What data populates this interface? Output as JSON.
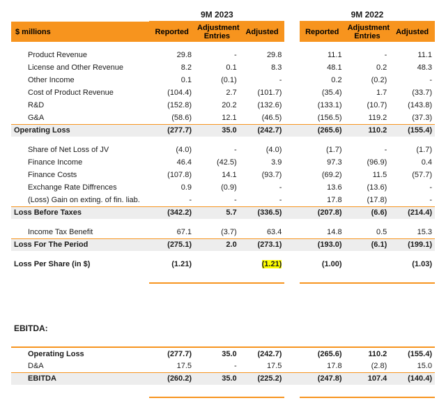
{
  "header": {
    "units": "$ millions",
    "periods": [
      "9M 2023",
      "9M 2022"
    ],
    "columns": [
      "Reported",
      "Adjustment Entries",
      "Adjusted"
    ]
  },
  "rows": {
    "prodRev": {
      "label": "Product Revenue",
      "a": [
        "29.8",
        "-",
        "29.8"
      ],
      "b": [
        "11.1",
        "-",
        "11.1"
      ]
    },
    "licRev": {
      "label": "License and Other Revenue",
      "a": [
        "8.2",
        "0.1",
        "8.3"
      ],
      "b": [
        "48.1",
        "0.2",
        "48.3"
      ]
    },
    "otherInc": {
      "label": "Other Income",
      "a": [
        "0.1",
        "(0.1)",
        "-"
      ],
      "b": [
        "0.2",
        "(0.2)",
        "-"
      ]
    },
    "cogs": {
      "label": "Cost of Product Revenue",
      "a": [
        "(104.4)",
        "2.7",
        "(101.7)"
      ],
      "b": [
        "(35.4)",
        "1.7",
        "(33.7)"
      ]
    },
    "rnd": {
      "label": "R&D",
      "a": [
        "(152.8)",
        "20.2",
        "(132.6)"
      ],
      "b": [
        "(133.1)",
        "(10.7)",
        "(143.8)"
      ]
    },
    "gna": {
      "label": "G&A",
      "a": [
        "(58.6)",
        "12.1",
        "(46.5)"
      ],
      "b": [
        "(156.5)",
        "119.2",
        "(37.3)"
      ]
    },
    "opLoss": {
      "label": "Operating Loss",
      "a": [
        "(277.7)",
        "35.0",
        "(242.7)"
      ],
      "b": [
        "(265.6)",
        "110.2",
        "(155.4)"
      ]
    },
    "jv": {
      "label": "Share of Net Loss of JV",
      "a": [
        "(4.0)",
        "-",
        "(4.0)"
      ],
      "b": [
        "(1.7)",
        "-",
        "(1.7)"
      ]
    },
    "finInc": {
      "label": "Finance Income",
      "a": [
        "46.4",
        "(42.5)",
        "3.9"
      ],
      "b": [
        "97.3",
        "(96.9)",
        "0.4"
      ]
    },
    "finCost": {
      "label": "Finance Costs",
      "a": [
        "(107.8)",
        "14.1",
        "(93.7)"
      ],
      "b": [
        "(69.2)",
        "11.5",
        "(57.7)"
      ]
    },
    "fx": {
      "label": "Exchange Rate Diffrences",
      "a": [
        "0.9",
        "(0.9)",
        "-"
      ],
      "b": [
        "13.6",
        "(13.6)",
        "-"
      ]
    },
    "exting": {
      "label": "(Loss) Gain on exting. of fin. liab.",
      "a": [
        "-",
        "-",
        "-"
      ],
      "b": [
        "17.8",
        "(17.8)",
        "-"
      ]
    },
    "lbt": {
      "label": "Loss Before Taxes",
      "a": [
        "(342.2)",
        "5.7",
        "(336.5)"
      ],
      "b": [
        "(207.8)",
        "(6.6)",
        "(214.4)"
      ]
    },
    "tax": {
      "label": "Income Tax Benefit",
      "a": [
        "67.1",
        "(3.7)",
        "63.4"
      ],
      "b": [
        "14.8",
        "0.5",
        "15.3"
      ]
    },
    "lftp": {
      "label": "Loss For The Period",
      "a": [
        "(275.1)",
        "2.0",
        "(273.1)"
      ],
      "b": [
        "(193.0)",
        "(6.1)",
        "(199.1)"
      ]
    },
    "lps": {
      "label": "Loss Per Share (in $)",
      "a": [
        "(1.21)",
        "",
        "(1.21)"
      ],
      "b": [
        "(1.00)",
        "",
        "(1.03)"
      ]
    }
  },
  "ebitda": {
    "title": "EBITDA:",
    "opLoss": {
      "label": "Operating Loss",
      "a": [
        "(277.7)",
        "35.0",
        "(242.7)"
      ],
      "b": [
        "(265.6)",
        "110.2",
        "(155.4)"
      ]
    },
    "da": {
      "label": "D&A",
      "a": [
        "17.5",
        "-",
        "17.5"
      ],
      "b": [
        "17.8",
        "(2.8)",
        "15.0"
      ]
    },
    "ebitda": {
      "label": "EBITDA",
      "a": [
        "(260.2)",
        "35.0",
        "(225.2)"
      ],
      "b": [
        "(247.8)",
        "107.4",
        "(140.4)"
      ]
    }
  }
}
